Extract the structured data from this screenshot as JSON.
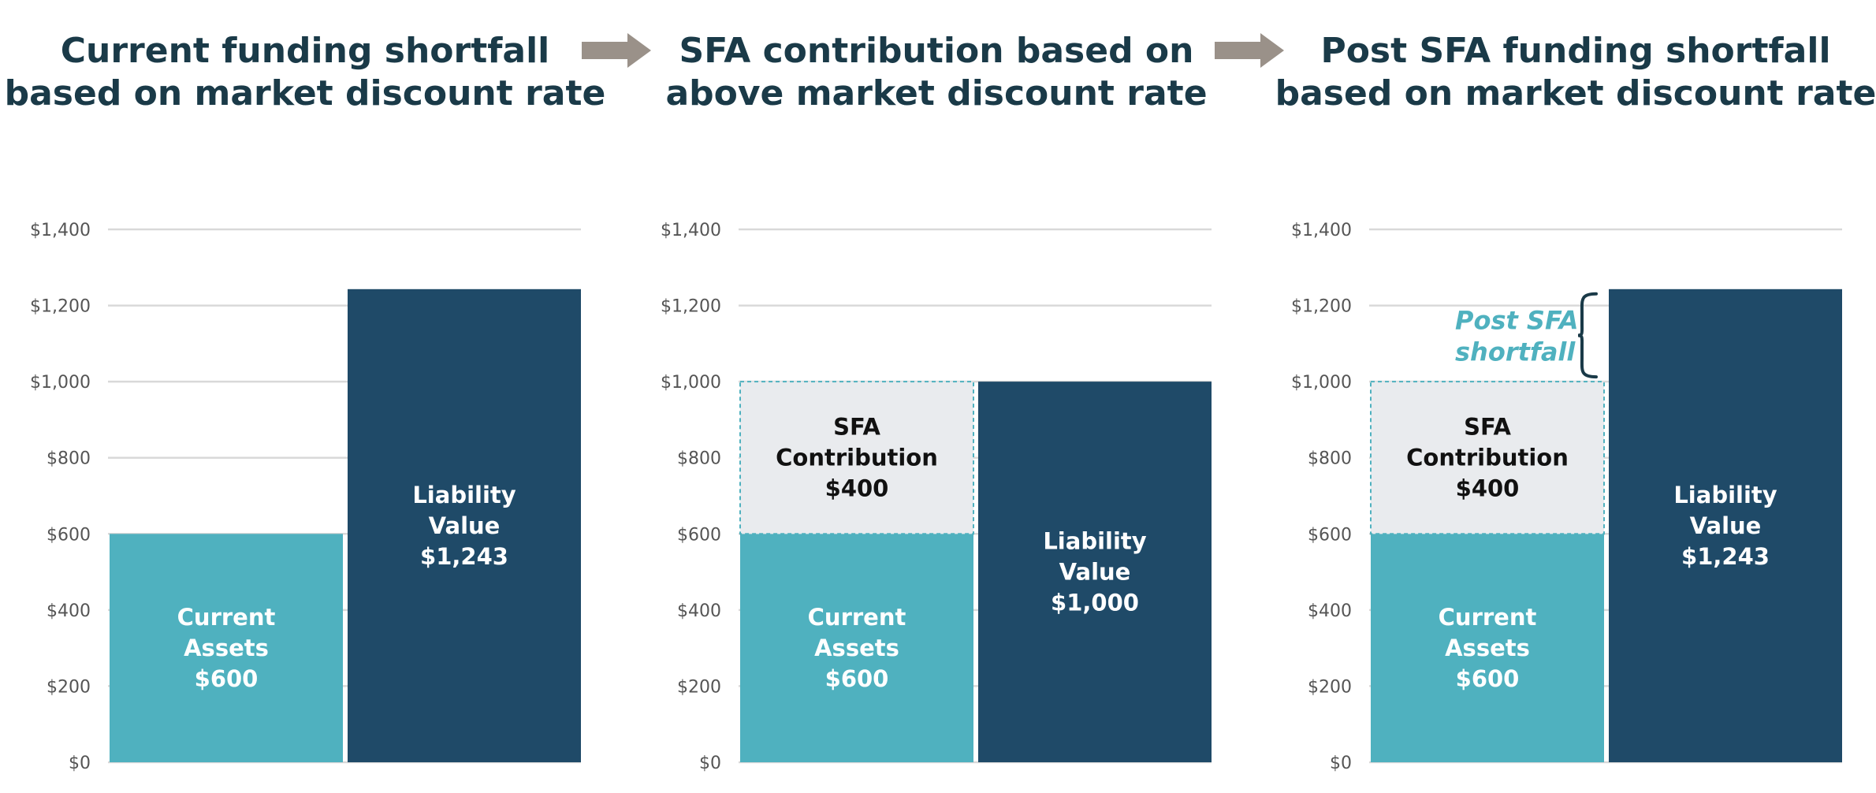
{
  "colors": {
    "assets": "#4fb1bf",
    "liability": "#1f4a68",
    "sfa": "#e9ebee",
    "sfa_border": "#4fb1bf",
    "grid": "#d9d9d9",
    "title": "#1a3a48",
    "arrow": "#9a9189",
    "brace": "#1a3a48"
  },
  "panels": [
    {
      "title_line1": "Current funding shortfall",
      "title_line2": "based on market discount rate"
    },
    {
      "title_line1": "SFA contribution based on",
      "title_line2": "above market discount rate"
    },
    {
      "title_line1": "Post SFA funding shortfall",
      "title_line2": "based on market discount rate"
    }
  ],
  "arrows": [
    "right-arrow-icon",
    "right-arrow-icon"
  ],
  "chart_data": [
    {
      "type": "bar",
      "ylim": [
        0,
        1400
      ],
      "yticks": [
        "$0",
        "$200",
        "$400",
        "$600",
        "$800",
        "$1,000",
        "$1,200",
        "$1,400"
      ],
      "grid": true,
      "bars": [
        {
          "segments": [
            {
              "value": 600,
              "kind": "assets",
              "label": [
                "Current",
                "Assets",
                "$600"
              ]
            }
          ]
        },
        {
          "segments": [
            {
              "value": 1243,
              "kind": "liability",
              "label": [
                "Liability",
                "Value",
                "$1,243"
              ]
            }
          ]
        }
      ]
    },
    {
      "type": "bar",
      "ylim": [
        0,
        1400
      ],
      "yticks": [
        "$0",
        "$200",
        "$400",
        "$600",
        "$800",
        "$1,000",
        "$1,200",
        "$1,400"
      ],
      "grid": true,
      "bars": [
        {
          "segments": [
            {
              "value": 600,
              "kind": "assets",
              "label": [
                "Current",
                "Assets",
                "$600"
              ]
            },
            {
              "value": 400,
              "kind": "sfa",
              "label": [
                "SFA",
                "Contribution",
                "$400"
              ]
            }
          ]
        },
        {
          "segments": [
            {
              "value": 1000,
              "kind": "liability",
              "label": [
                "Liability",
                "Value",
                "$1,000"
              ]
            }
          ]
        }
      ]
    },
    {
      "type": "bar",
      "ylim": [
        0,
        1400
      ],
      "yticks": [
        "$0",
        "$200",
        "$400",
        "$600",
        "$800",
        "$1,000",
        "$1,200",
        "$1,400"
      ],
      "grid": true,
      "bars": [
        {
          "segments": [
            {
              "value": 600,
              "kind": "assets",
              "label": [
                "Current",
                "Assets",
                "$600"
              ]
            },
            {
              "value": 400,
              "kind": "sfa",
              "label": [
                "SFA",
                "Contribution",
                "$400"
              ]
            }
          ]
        },
        {
          "segments": [
            {
              "value": 1243,
              "kind": "liability",
              "label": [
                "Liability",
                "Value",
                "$1,243"
              ]
            }
          ]
        }
      ],
      "annotation": {
        "lines": [
          "Post SFA",
          "shortfall"
        ],
        "from": 1000,
        "to": 1243
      }
    }
  ]
}
